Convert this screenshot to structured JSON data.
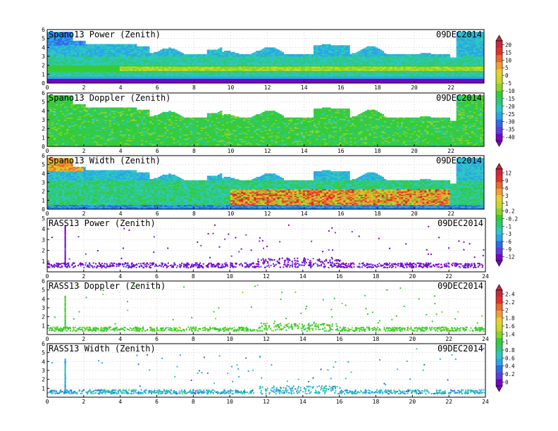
{
  "date_label": "09DEC2014",
  "panels": [
    {
      "title": "Spano13 Power (Zenith)",
      "cbar": "power"
    },
    {
      "title": "Spano13 Doppler (Zenith)",
      "cbar": "power"
    },
    {
      "title": "Spano13 Width (Zenith)",
      "cbar": "width"
    },
    {
      "title": "RASS13 Power (Zenith)",
      "cbar": "width"
    },
    {
      "title": "RASS13 Doppler (Zenith)",
      "cbar": "doppler"
    },
    {
      "title": "RASS13 Width (Zenith)",
      "cbar": "doppler"
    }
  ],
  "colorbars": {
    "power": {
      "labels": [
        "20",
        "15",
        "10",
        "5",
        "0",
        "-5",
        "-10",
        "-15",
        "-20",
        "-25",
        "-30",
        "-35",
        "-40"
      ]
    },
    "width": {
      "labels": [
        "12",
        "9",
        "6",
        "3",
        "1",
        "0.2",
        "-0.2",
        "-1",
        "-3",
        "-6",
        "-9",
        "-12"
      ]
    },
    "doppler": {
      "labels": [
        "2.4",
        "2.2",
        "2",
        "1.8",
        "1.6",
        "1.4",
        "1",
        "0.8",
        "0.6",
        "0.4",
        "0.2",
        "0"
      ]
    }
  },
  "palette": [
    "#3a3a3a",
    "#7a00c8",
    "#5a3fe0",
    "#2f6ae8",
    "#2aa6e6",
    "#2cc8c0",
    "#2ec87a",
    "#34cc34",
    "#8ad42a",
    "#c8d826",
    "#e8d02a",
    "#f0a030",
    "#e86a2e",
    "#e02828"
  ],
  "chart_data": [
    {
      "type": "heatmap",
      "title": "Spano13 Power (Zenith)",
      "date": "09DEC2014",
      "xlim": [
        0,
        23.8
      ],
      "ylim": [
        0,
        6
      ],
      "xticks": [
        "0",
        "2",
        "4",
        "6",
        "8",
        "10",
        "12",
        "14",
        "16",
        "18",
        "20",
        "22"
      ],
      "yticks": [
        "0",
        "1",
        "2",
        "3",
        "4",
        "5",
        "6"
      ],
      "colorbar": [
        20,
        15,
        10,
        5,
        0,
        -5,
        -10,
        -15,
        -20,
        -25,
        -30,
        -35,
        -40
      ]
    },
    {
      "type": "heatmap",
      "title": "Spano13 Doppler (Zenith)",
      "date": "09DEC2014",
      "xlim": [
        0,
        23.8
      ],
      "ylim": [
        0,
        6
      ],
      "xticks": [
        "0",
        "2",
        "4",
        "6",
        "8",
        "10",
        "12",
        "14",
        "16",
        "18",
        "20",
        "22"
      ],
      "yticks": [
        "0",
        "1",
        "2",
        "3",
        "4",
        "5",
        "6"
      ]
    },
    {
      "type": "heatmap",
      "title": "Spano13 Width (Zenith)",
      "date": "09DEC2014",
      "xlim": [
        0,
        23.8
      ],
      "ylim": [
        0,
        6
      ],
      "xticks": [
        "0",
        "2",
        "4",
        "6",
        "8",
        "10",
        "12",
        "14",
        "16",
        "18",
        "20",
        "22"
      ],
      "yticks": [
        "0",
        "1",
        "2",
        "3",
        "4",
        "5",
        "6"
      ],
      "colorbar": [
        12,
        9,
        6,
        3,
        1,
        0.2,
        -0.2,
        -1,
        -3,
        -6,
        -9,
        -12
      ]
    },
    {
      "type": "scatter",
      "title": "RASS13 Power (Zenith)",
      "date": "09DEC2014",
      "xlim": [
        0,
        24
      ],
      "ylim": [
        0,
        5
      ],
      "xticks": [
        "0",
        "2",
        "4",
        "6",
        "8",
        "10",
        "12",
        "14",
        "16",
        "18",
        "20",
        "22",
        "24"
      ],
      "yticks": [
        "1",
        "2",
        "3",
        "4",
        "5"
      ]
    },
    {
      "type": "scatter",
      "title": "RASS13 Doppler (Zenith)",
      "date": "09DEC2014",
      "xlim": [
        0,
        24
      ],
      "ylim": [
        0,
        6
      ],
      "xticks": [
        "0",
        "2",
        "4",
        "6",
        "8",
        "10",
        "12",
        "14",
        "16",
        "18",
        "20",
        "22",
        "24"
      ],
      "yticks": [
        "1",
        "2",
        "3",
        "4",
        "5",
        "6"
      ],
      "colorbar": [
        2.4,
        2.2,
        2,
        1.8,
        1.6,
        1.4,
        1,
        0.8,
        0.6,
        0.4,
        0.2,
        0
      ]
    },
    {
      "type": "scatter",
      "title": "RASS13 Width (Zenith)",
      "date": "09DEC2014",
      "xlim": [
        0,
        24
      ],
      "ylim": [
        0,
        6
      ],
      "xticks": [
        "0",
        "2",
        "4",
        "6",
        "8",
        "10",
        "12",
        "14",
        "16",
        "18",
        "20",
        "22",
        "24"
      ],
      "yticks": [
        "1",
        "2",
        "3",
        "4",
        "5",
        "6"
      ]
    }
  ]
}
